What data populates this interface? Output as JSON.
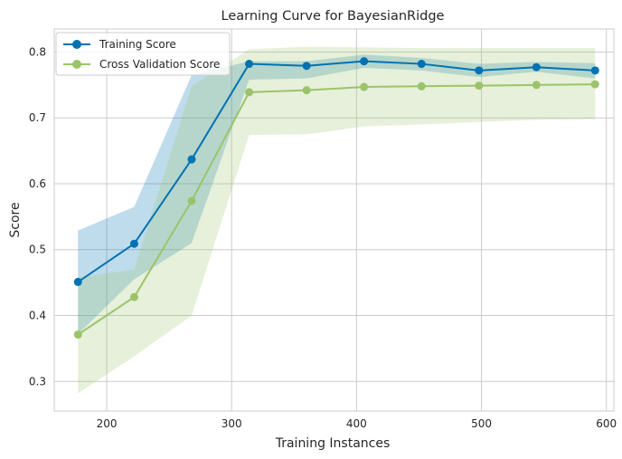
{
  "chart_data": {
    "type": "line",
    "title": "Learning Curve for BayesianRidge",
    "xlabel": "Training Instances",
    "ylabel": "Score",
    "xlim": [
      158,
      606
    ],
    "ylim": [
      0.255,
      0.835
    ],
    "x_ticks": [
      200,
      300,
      400,
      500,
      600
    ],
    "y_ticks": [
      0.3,
      0.4,
      0.5,
      0.6,
      0.7,
      0.8
    ],
    "grid": true,
    "legend_position": "top-left",
    "x": [
      177,
      222,
      268,
      314,
      360,
      406,
      452,
      498,
      544,
      591
    ],
    "series": [
      {
        "name": "Training Score",
        "color": "#0072b2",
        "band_color": "#0072b2",
        "values": [
          0.451,
          0.509,
          0.637,
          0.782,
          0.779,
          0.786,
          0.782,
          0.772,
          0.777,
          0.772
        ],
        "lower": [
          0.372,
          0.455,
          0.51,
          0.758,
          0.76,
          0.776,
          0.772,
          0.762,
          0.77,
          0.76
        ],
        "upper": [
          0.529,
          0.565,
          0.765,
          0.786,
          0.786,
          0.796,
          0.791,
          0.782,
          0.785,
          0.783
        ]
      },
      {
        "name": "Cross Validation Score",
        "color": "#9bc46a",
        "band_color": "#9bc46a",
        "values": [
          0.371,
          0.428,
          0.574,
          0.739,
          0.742,
          0.747,
          0.748,
          0.749,
          0.75,
          0.751
        ],
        "lower": [
          0.282,
          0.338,
          0.4,
          0.674,
          0.675,
          0.687,
          0.69,
          0.694,
          0.697,
          0.698
        ],
        "upper": [
          0.458,
          0.47,
          0.748,
          0.804,
          0.808,
          0.807,
          0.806,
          0.806,
          0.806,
          0.806
        ]
      }
    ]
  }
}
